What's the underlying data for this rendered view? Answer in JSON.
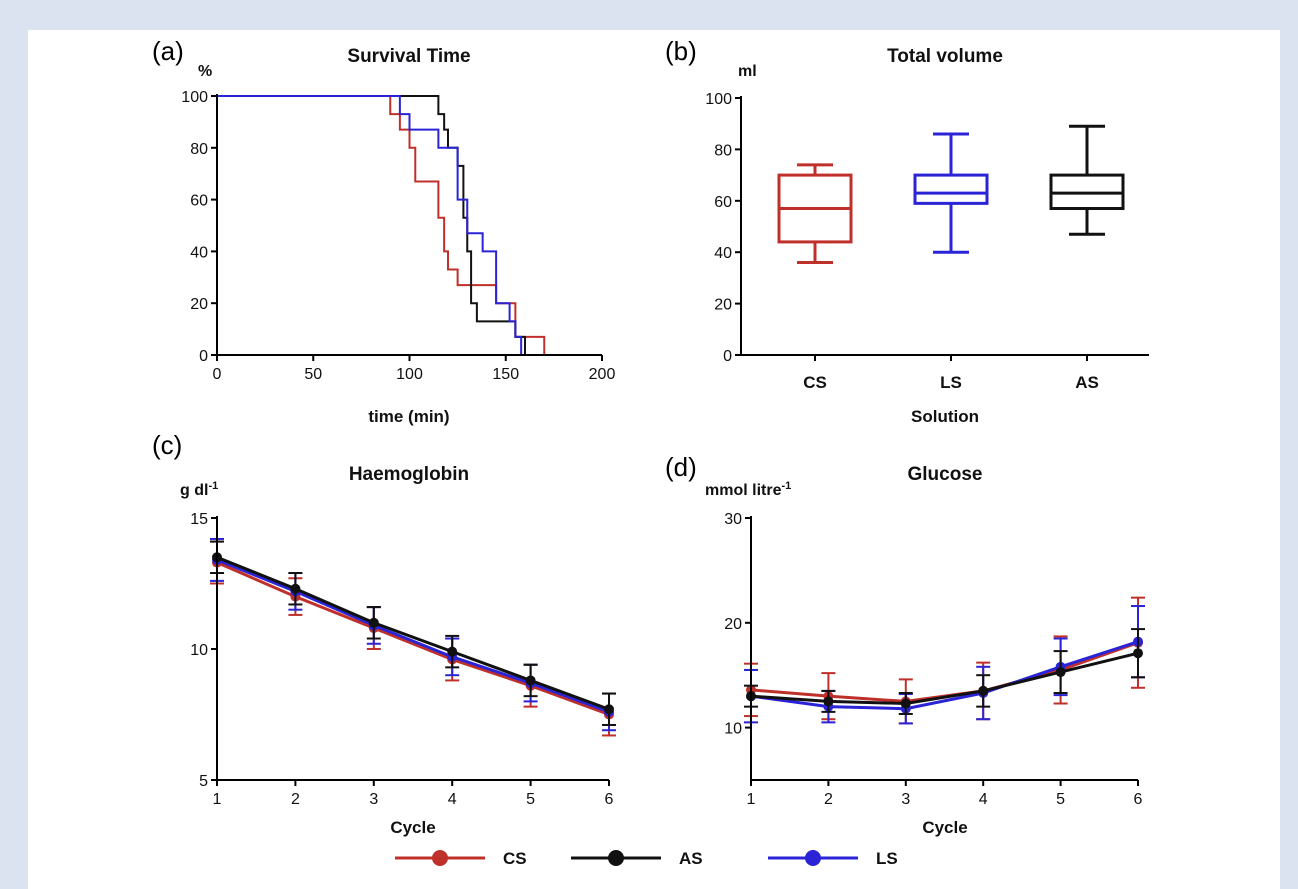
{
  "colors": {
    "CS": "#c0302b",
    "AS": "#111111",
    "LS": "#2a24d6",
    "background": "#dbe3f1"
  },
  "legend": [
    {
      "key": "CS",
      "label": "CS"
    },
    {
      "key": "AS",
      "label": "AS"
    },
    {
      "key": "LS",
      "label": "LS"
    }
  ],
  "chart_data": [
    {
      "panel": "(a)",
      "type": "line",
      "subtype": "step",
      "title": "Survival Time",
      "unit": "%",
      "xlabel": "time (min)",
      "xlim": [
        0,
        200
      ],
      "ylim": [
        0,
        100
      ],
      "xticks": [
        0,
        50,
        100,
        150,
        200
      ],
      "yticks": [
        0,
        20,
        40,
        60,
        80,
        100
      ],
      "series": [
        {
          "key": "CS",
          "x": [
            0,
            87,
            90,
            95,
            100,
            103,
            110,
            115,
            118,
            120,
            125,
            135,
            145,
            155,
            160,
            170
          ],
          "y": [
            100,
            100,
            93,
            87,
            80,
            67,
            67,
            53,
            40,
            33,
            27,
            27,
            20,
            7,
            7,
            0
          ]
        },
        {
          "key": "AS",
          "x": [
            0,
            112,
            115,
            118,
            120,
            125,
            128,
            130,
            132,
            135,
            140,
            150,
            155,
            160
          ],
          "y": [
            100,
            100,
            93,
            87,
            80,
            73,
            53,
            40,
            20,
            13,
            13,
            13,
            7,
            0
          ]
        },
        {
          "key": "LS",
          "x": [
            0,
            87,
            95,
            100,
            108,
            115,
            125,
            130,
            138,
            145,
            152,
            155,
            158
          ],
          "y": [
            100,
            100,
            93,
            87,
            87,
            80,
            60,
            47,
            40,
            20,
            13,
            7,
            0
          ]
        }
      ]
    },
    {
      "panel": "(b)",
      "type": "box",
      "title": "Total volume",
      "unit": "ml",
      "xlabel": "Solution",
      "ylim": [
        0,
        100
      ],
      "yticks": [
        0,
        20,
        40,
        60,
        80,
        100
      ],
      "categories": [
        "CS",
        "LS",
        "AS"
      ],
      "boxes": [
        {
          "key": "CS",
          "min": 36,
          "q1": 44,
          "median": 57,
          "q3": 70,
          "max": 74
        },
        {
          "key": "LS",
          "min": 40,
          "q1": 59,
          "median": 63,
          "q3": 70,
          "max": 86
        },
        {
          "key": "AS",
          "min": 47,
          "q1": 57,
          "median": 63,
          "q3": 70,
          "max": 89
        }
      ]
    },
    {
      "panel": "(c)",
      "type": "line",
      "title": "Haemoglobin",
      "unit": "g dl",
      "unit_sup": "-1",
      "xlabel": "Cycle",
      "xlim": [
        1,
        6
      ],
      "ylim": [
        5,
        15
      ],
      "xticks": [
        1,
        2,
        3,
        4,
        5,
        6
      ],
      "yticks": [
        5,
        10,
        15
      ],
      "series": [
        {
          "key": "CS",
          "x": [
            1,
            2,
            3,
            4,
            5,
            6
          ],
          "y": [
            13.3,
            12.0,
            10.8,
            9.6,
            8.6,
            7.5
          ],
          "err": [
            0.8,
            0.7,
            0.8,
            0.8,
            0.8,
            0.8
          ]
        },
        {
          "key": "LS",
          "x": [
            1,
            2,
            3,
            4,
            5,
            6
          ],
          "y": [
            13.4,
            12.2,
            10.9,
            9.7,
            8.7,
            7.6
          ],
          "err": [
            0.8,
            0.7,
            0.7,
            0.7,
            0.7,
            0.7
          ]
        },
        {
          "key": "AS",
          "x": [
            1,
            2,
            3,
            4,
            5,
            6
          ],
          "y": [
            13.5,
            12.3,
            11.0,
            9.9,
            8.8,
            7.7
          ],
          "err": [
            0.6,
            0.6,
            0.6,
            0.6,
            0.6,
            0.6
          ]
        }
      ]
    },
    {
      "panel": "(d)",
      "type": "line",
      "title": "Glucose",
      "unit": "mmol litre",
      "unit_sup": "-1",
      "xlabel": "Cycle",
      "xlim": [
        1,
        6
      ],
      "ylim": [
        5,
        30
      ],
      "xticks": [
        1,
        2,
        3,
        4,
        5,
        6
      ],
      "yticks": [
        10,
        20,
        30
      ],
      "series": [
        {
          "key": "CS",
          "x": [
            1,
            2,
            3,
            4,
            5,
            6
          ],
          "y": [
            13.6,
            13.0,
            12.5,
            13.5,
            15.5,
            18.1
          ],
          "err": [
            2.5,
            2.2,
            2.1,
            2.7,
            3.2,
            4.3
          ]
        },
        {
          "key": "LS",
          "x": [
            1,
            2,
            3,
            4,
            5,
            6
          ],
          "y": [
            13.0,
            12.0,
            11.8,
            13.3,
            15.8,
            18.2
          ],
          "err": [
            2.5,
            1.5,
            1.4,
            2.5,
            2.7,
            3.4
          ]
        },
        {
          "key": "AS",
          "x": [
            1,
            2,
            3,
            4,
            5,
            6
          ],
          "y": [
            13.0,
            12.5,
            12.3,
            13.5,
            15.3,
            17.1
          ],
          "err": [
            1.0,
            1.0,
            1.0,
            1.5,
            2.0,
            2.3
          ]
        }
      ]
    }
  ]
}
